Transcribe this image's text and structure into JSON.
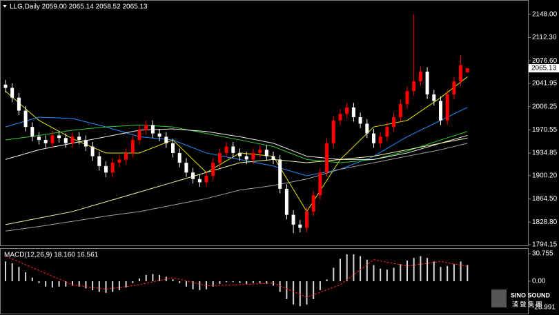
{
  "title": "LLG,Daily 2059.00 2065.14 2058.52 2065.13",
  "watermark": {
    "brand": "SINO SOUND",
    "chinese": "漢 聲 集 團"
  },
  "chart_data": [
    {
      "type": "candlestick",
      "ylim": [
        1792,
        2170
      ],
      "yticks": [
        {
          "value": 2148,
          "label": "2148.00"
        },
        {
          "value": 2112.3,
          "label": "2112.30"
        },
        {
          "value": 2076.6,
          "label": "2076.60"
        },
        {
          "value": 2041.95,
          "label": "2041.95"
        },
        {
          "value": 2006.25,
          "label": "2006.25"
        },
        {
          "value": 1970.55,
          "label": "1970.55"
        },
        {
          "value": 1934.85,
          "label": "1934.85"
        },
        {
          "value": 1900.2,
          "label": "1900.20"
        },
        {
          "value": 1864.5,
          "label": "1864.50"
        },
        {
          "value": 1828.8,
          "label": "1828.80"
        },
        {
          "value": 1794.15,
          "label": "1794.15"
        }
      ],
      "up_color": "#ff0000",
      "down_color": "#ffffff",
      "candles": {
        "open": [
          2040,
          2035,
          2020,
          2000,
          1975,
          1960,
          1955,
          1950,
          1962,
          1958,
          1950,
          1960,
          1955,
          1945,
          1930,
          1915,
          1905,
          1920,
          1925,
          1935,
          1955,
          1970,
          1978,
          1965,
          1960,
          1950,
          1935,
          1920,
          1905,
          1895,
          1890,
          1900,
          1920,
          1935,
          1945,
          1935,
          1930,
          1925,
          1935,
          1940,
          1930,
          1925,
          1880,
          1840,
          1825,
          1820,
          1845,
          1870,
          1905,
          1950,
          1985,
          1995,
          2005,
          1990,
          1980,
          1965,
          1950,
          1960,
          1975,
          1990,
          2010,
          2030,
          2045,
          2060,
          2025,
          2015,
          1985,
          2025,
          2045,
          2059
        ],
        "high": [
          2047,
          2042,
          2027,
          2007,
          1982,
          1967,
          1962,
          1969,
          1969,
          1965,
          1967,
          1967,
          1962,
          1952,
          1937,
          1922,
          1927,
          1932,
          1942,
          1962,
          1977,
          1985,
          1985,
          1972,
          1967,
          1957,
          1942,
          1927,
          1912,
          1902,
          1907,
          1927,
          1942,
          1952,
          1952,
          1942,
          1937,
          1942,
          1947,
          1947,
          1937,
          1932,
          1887,
          1847,
          1832,
          1852,
          1877,
          1912,
          1957,
          1992,
          2002,
          2012,
          2012,
          1997,
          1987,
          1972,
          1967,
          1982,
          1997,
          2017,
          2037,
          2148,
          2067,
          2067,
          2032,
          2022,
          2032,
          2052,
          2085,
          2065.14
        ],
        "low": [
          2028,
          2013,
          1993,
          1968,
          1953,
          1948,
          1943,
          1943,
          1951,
          1943,
          1943,
          1948,
          1938,
          1923,
          1908,
          1898,
          1898,
          1913,
          1918,
          1928,
          1948,
          1963,
          1958,
          1953,
          1943,
          1928,
          1913,
          1898,
          1888,
          1883,
          1883,
          1893,
          1913,
          1928,
          1928,
          1923,
          1918,
          1918,
          1928,
          1923,
          1918,
          1873,
          1833,
          1812,
          1813,
          1813,
          1838,
          1863,
          1898,
          1943,
          1978,
          1988,
          1983,
          1973,
          1958,
          1943,
          1943,
          1953,
          1968,
          1983,
          2003,
          2023,
          2038,
          2018,
          2008,
          1978,
          1978,
          2018,
          2038,
          2058.52
        ],
        "close": [
          2035,
          2020,
          2000,
          1975,
          1960,
          1955,
          1950,
          1962,
          1958,
          1950,
          1960,
          1955,
          1945,
          1930,
          1915,
          1905,
          1920,
          1925,
          1935,
          1955,
          1970,
          1978,
          1965,
          1960,
          1950,
          1935,
          1920,
          1905,
          1895,
          1890,
          1900,
          1920,
          1935,
          1945,
          1935,
          1930,
          1925,
          1935,
          1940,
          1930,
          1925,
          1880,
          1840,
          1825,
          1820,
          1845,
          1870,
          1905,
          1950,
          1985,
          1995,
          2005,
          1990,
          1980,
          1965,
          1950,
          1960,
          1975,
          1990,
          2010,
          2030,
          2045,
          2060,
          2025,
          2015,
          1985,
          2025,
          2045,
          2070,
          2065.13
        ]
      },
      "series": [
        {
          "color": "#e6e600",
          "x": [
            0,
            5,
            10,
            15,
            20,
            25,
            30,
            35,
            40,
            45,
            50,
            55,
            60,
            65,
            69
          ],
          "values": [
            2030,
            1985,
            1957,
            1935,
            1935,
            1955,
            1905,
            1935,
            1930,
            1845,
            1925,
            1975,
            1985,
            2020,
            2052
          ]
        },
        {
          "color": "#1e90ff",
          "x": [
            0,
            5,
            10,
            15,
            20,
            25,
            30,
            35,
            40,
            45,
            50,
            55,
            60,
            65,
            69
          ],
          "values": [
            1975,
            1990,
            1988,
            1975,
            1960,
            1955,
            1935,
            1925,
            1915,
            1900,
            1910,
            1930,
            1960,
            1985,
            2005
          ]
        },
        {
          "color": "#32cd32",
          "x": [
            0,
            5,
            10,
            15,
            20,
            25,
            30,
            35,
            40,
            45,
            50,
            55,
            60,
            65,
            69
          ],
          "values": [
            1955,
            1962,
            1970,
            1975,
            1978,
            1975,
            1965,
            1955,
            1945,
            1925,
            1920,
            1925,
            1938,
            1955,
            1968
          ]
        },
        {
          "color": "#f0f0f0",
          "x": [
            0,
            5,
            10,
            15,
            20,
            25,
            30,
            35,
            40,
            45,
            50,
            55,
            60,
            65,
            69
          ],
          "values": [
            1925,
            1940,
            1950,
            1960,
            1970,
            1972,
            1968,
            1960,
            1950,
            1930,
            1925,
            1925,
            1935,
            1950,
            1962
          ]
        },
        {
          "color": "#f5f5a0",
          "x": [
            0,
            5,
            10,
            15,
            20,
            25,
            30,
            35,
            40,
            45,
            50,
            55,
            60,
            65,
            69
          ],
          "values": [
            1825,
            1835,
            1845,
            1860,
            1875,
            1890,
            1905,
            1920,
            1925,
            1920,
            1925,
            1930,
            1940,
            1950,
            1958
          ]
        },
        {
          "color": "#a0a0a0",
          "x": [
            0,
            5,
            10,
            15,
            20,
            25,
            30,
            35,
            40,
            45,
            50,
            55,
            60,
            65,
            69
          ],
          "values": [
            1815,
            1822,
            1830,
            1838,
            1845,
            1855,
            1865,
            1878,
            1885,
            1895,
            1910,
            1920,
            1930,
            1940,
            1950
          ]
        }
      ]
    },
    {
      "type": "macd",
      "title": "MACD(12,26,9) 18.160 16.561",
      "ylim": [
        -36.2,
        36.9
      ],
      "yticks": [
        {
          "value": 30.755,
          "label": "30.755"
        },
        {
          "value": 0,
          "label": "0.00"
        },
        {
          "value": -28.991,
          "label": "-28.991"
        }
      ],
      "histogram": {
        "color": "#d8d8d8",
        "values": [
          22,
          20,
          16,
          10,
          4,
          -2,
          -6,
          -7,
          -6,
          -6,
          -5,
          -6,
          -8,
          -10,
          -12,
          -13,
          -12,
          -10,
          -7,
          -2,
          3,
          7,
          8,
          7,
          5,
          2,
          -2,
          -6,
          -9,
          -10,
          -9,
          -6,
          -3,
          -1,
          -1,
          -2,
          -3,
          -2,
          -2,
          -3,
          -5,
          -12,
          -20,
          -26,
          -28,
          -26,
          -20,
          -10,
          2,
          15,
          25,
          30,
          30,
          28,
          24,
          18,
          14,
          13,
          15,
          19,
          23,
          26,
          28,
          26,
          22,
          16,
          17,
          19,
          22,
          18.16
        ]
      },
      "signal": {
        "color": "#ff2020",
        "x": [
          0,
          5,
          10,
          15,
          20,
          25,
          30,
          35,
          40,
          45,
          50,
          55,
          60,
          65,
          69
        ],
        "values": [
          28,
          12,
          -4,
          -9,
          -4,
          4,
          -5,
          -4,
          -2,
          -18,
          -4,
          24,
          17,
          22,
          16.561
        ]
      }
    }
  ]
}
